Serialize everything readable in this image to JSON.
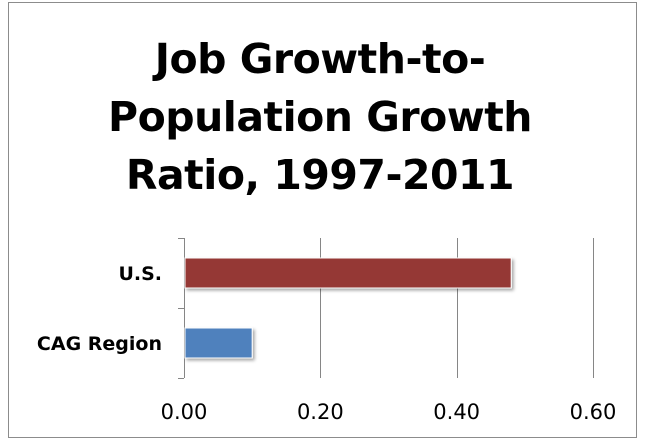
{
  "chart_data": {
    "type": "bar",
    "orientation": "horizontal",
    "title": "Job Growth-to-Population Growth Ratio, 1997-2011",
    "title_lines": [
      "Job Growth-to-",
      "Population Growth",
      "Ratio, 1997-2011"
    ],
    "categories": [
      "U.S.",
      "CAG Region"
    ],
    "values": [
      0.48,
      0.1
    ],
    "bar_colors": [
      "#953735",
      "#4f81bd"
    ],
    "xlim": [
      0,
      0.6
    ],
    "x_ticks": [
      0,
      0.2,
      0.4,
      0.6
    ],
    "x_tick_labels": [
      "0.00",
      "0.20",
      "0.40",
      "0.60"
    ],
    "grid": "vertical",
    "legend": "none",
    "xlabel": "",
    "ylabel": ""
  }
}
